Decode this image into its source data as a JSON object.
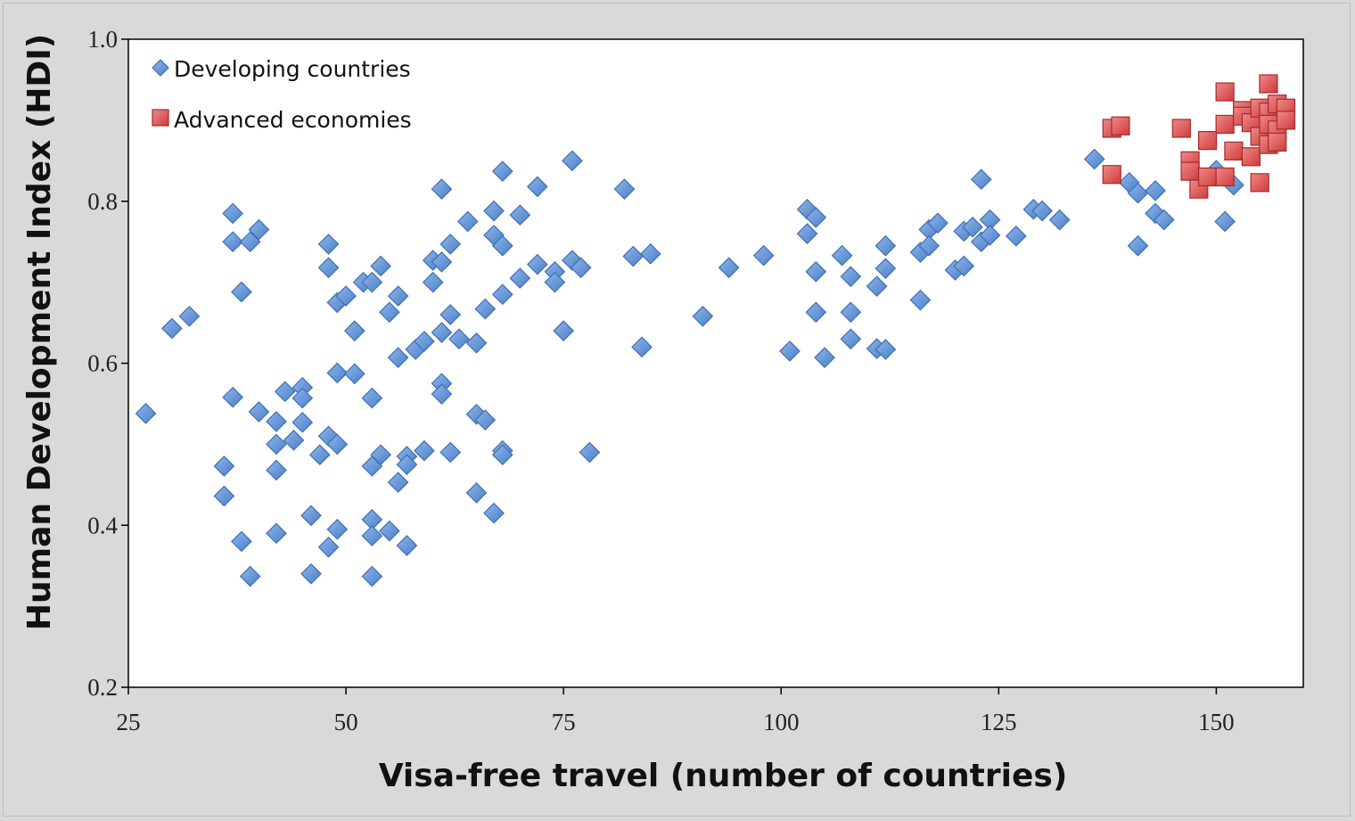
{
  "chart_data": {
    "type": "scatter",
    "xlabel": "Visa-free travel (number of countries)",
    "ylabel": "Human Development Index (HDI)",
    "xlim": [
      25,
      160
    ],
    "ylim": [
      0.2,
      1.0
    ],
    "x_ticks": [
      "25",
      "50",
      "75",
      "100",
      "125",
      "150"
    ],
    "y_ticks": [
      "0.2",
      "0.4",
      "0.6",
      "0.8",
      "1.0"
    ],
    "grid": false,
    "legend": "top-left",
    "series": [
      {
        "name": "Developing countries",
        "marker": "diamond",
        "color": "#5b8fd6",
        "points": [
          [
            27,
            0.538
          ],
          [
            30,
            0.643
          ],
          [
            32,
            0.658
          ],
          [
            36,
            0.473
          ],
          [
            36,
            0.436
          ],
          [
            37,
            0.785
          ],
          [
            37,
            0.75
          ],
          [
            37,
            0.558
          ],
          [
            38,
            0.688
          ],
          [
            38,
            0.38
          ],
          [
            39,
            0.75
          ],
          [
            39,
            0.337
          ],
          [
            40,
            0.765
          ],
          [
            40,
            0.54
          ],
          [
            42,
            0.528
          ],
          [
            42,
            0.5
          ],
          [
            42,
            0.468
          ],
          [
            42,
            0.39
          ],
          [
            43,
            0.565
          ],
          [
            44,
            0.505
          ],
          [
            45,
            0.57
          ],
          [
            45,
            0.557
          ],
          [
            45,
            0.527
          ],
          [
            46,
            0.412
          ],
          [
            46,
            0.34
          ],
          [
            47,
            0.487
          ],
          [
            48,
            0.747
          ],
          [
            48,
            0.718
          ],
          [
            48,
            0.51
          ],
          [
            48,
            0.373
          ],
          [
            49,
            0.675
          ],
          [
            49,
            0.588
          ],
          [
            49,
            0.5
          ],
          [
            49,
            0.395
          ],
          [
            50,
            0.683
          ],
          [
            51,
            0.64
          ],
          [
            51,
            0.587
          ],
          [
            52,
            0.7
          ],
          [
            53,
            0.7
          ],
          [
            53,
            0.557
          ],
          [
            53,
            0.473
          ],
          [
            53,
            0.407
          ],
          [
            53,
            0.387
          ],
          [
            53,
            0.337
          ],
          [
            54,
            0.72
          ],
          [
            54,
            0.487
          ],
          [
            55,
            0.663
          ],
          [
            55,
            0.393
          ],
          [
            56,
            0.683
          ],
          [
            56,
            0.607
          ],
          [
            56,
            0.453
          ],
          [
            57,
            0.485
          ],
          [
            57,
            0.475
          ],
          [
            57,
            0.375
          ],
          [
            58,
            0.617
          ],
          [
            59,
            0.627
          ],
          [
            59,
            0.492
          ],
          [
            60,
            0.727
          ],
          [
            60,
            0.7
          ],
          [
            61,
            0.815
          ],
          [
            61,
            0.725
          ],
          [
            61,
            0.638
          ],
          [
            61,
            0.575
          ],
          [
            61,
            0.562
          ],
          [
            62,
            0.747
          ],
          [
            62,
            0.66
          ],
          [
            62,
            0.49
          ],
          [
            63,
            0.63
          ],
          [
            64,
            0.775
          ],
          [
            65,
            0.625
          ],
          [
            65,
            0.537
          ],
          [
            65,
            0.44
          ],
          [
            66,
            0.667
          ],
          [
            66,
            0.53
          ],
          [
            67,
            0.788
          ],
          [
            67,
            0.758
          ],
          [
            67,
            0.415
          ],
          [
            68,
            0.837
          ],
          [
            68,
            0.745
          ],
          [
            68,
            0.685
          ],
          [
            68,
            0.492
          ],
          [
            68,
            0.487
          ],
          [
            70,
            0.705
          ],
          [
            70,
            0.783
          ],
          [
            72,
            0.818
          ],
          [
            72,
            0.722
          ],
          [
            74,
            0.713
          ],
          [
            74,
            0.7
          ],
          [
            75,
            0.64
          ],
          [
            76,
            0.85
          ],
          [
            76,
            0.727
          ],
          [
            77,
            0.718
          ],
          [
            78,
            0.49
          ],
          [
            82,
            0.815
          ],
          [
            83,
            0.732
          ],
          [
            84,
            0.62
          ],
          [
            85,
            0.735
          ],
          [
            91,
            0.658
          ],
          [
            94,
            0.718
          ],
          [
            98,
            0.733
          ],
          [
            101,
            0.615
          ],
          [
            103,
            0.79
          ],
          [
            103,
            0.76
          ],
          [
            104,
            0.78
          ],
          [
            104,
            0.713
          ],
          [
            104,
            0.663
          ],
          [
            105,
            0.607
          ],
          [
            107,
            0.733
          ],
          [
            108,
            0.707
          ],
          [
            108,
            0.663
          ],
          [
            108,
            0.63
          ],
          [
            111,
            0.695
          ],
          [
            111,
            0.618
          ],
          [
            112,
            0.745
          ],
          [
            112,
            0.717
          ],
          [
            112,
            0.617
          ],
          [
            116,
            0.737
          ],
          [
            116,
            0.678
          ],
          [
            117,
            0.765
          ],
          [
            117,
            0.745
          ],
          [
            118,
            0.773
          ],
          [
            120,
            0.715
          ],
          [
            121,
            0.763
          ],
          [
            121,
            0.72
          ],
          [
            122,
            0.768
          ],
          [
            123,
            0.827
          ],
          [
            123,
            0.75
          ],
          [
            124,
            0.777
          ],
          [
            124,
            0.758
          ],
          [
            127,
            0.757
          ],
          [
            129,
            0.79
          ],
          [
            130,
            0.788
          ],
          [
            132,
            0.777
          ],
          [
            136,
            0.852
          ],
          [
            140,
            0.823
          ],
          [
            141,
            0.81
          ],
          [
            141,
            0.745
          ],
          [
            143,
            0.813
          ],
          [
            143,
            0.785
          ],
          [
            144,
            0.777
          ],
          [
            150,
            0.838
          ],
          [
            151,
            0.775
          ],
          [
            152,
            0.82
          ]
        ]
      },
      {
        "name": "Advanced economies",
        "marker": "square",
        "color": "#e05050",
        "points": [
          [
            138,
            0.89
          ],
          [
            138,
            0.833
          ],
          [
            139,
            0.893
          ],
          [
            146,
            0.89
          ],
          [
            147,
            0.85
          ],
          [
            147,
            0.837
          ],
          [
            148,
            0.815
          ],
          [
            149,
            0.875
          ],
          [
            149,
            0.83
          ],
          [
            151,
            0.935
          ],
          [
            151,
            0.895
          ],
          [
            151,
            0.83
          ],
          [
            152,
            0.862
          ],
          [
            153,
            0.912
          ],
          [
            153,
            0.905
          ],
          [
            154,
            0.897
          ],
          [
            154,
            0.855
          ],
          [
            155,
            0.915
          ],
          [
            155,
            0.88
          ],
          [
            155,
            0.823
          ],
          [
            156,
            0.945
          ],
          [
            156,
            0.91
          ],
          [
            156,
            0.895
          ],
          [
            156,
            0.87
          ],
          [
            157,
            0.92
          ],
          [
            157,
            0.888
          ],
          [
            157,
            0.873
          ],
          [
            158,
            0.915
          ],
          [
            158,
            0.9
          ]
        ]
      }
    ]
  }
}
